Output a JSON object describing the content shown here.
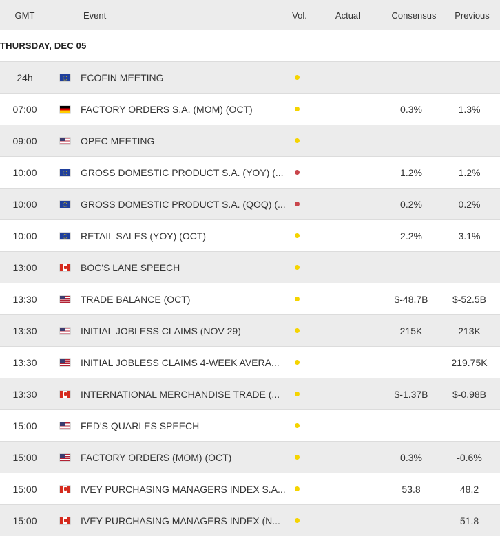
{
  "header": {
    "gmt": "GMT",
    "event": "Event",
    "vol": "Vol.",
    "actual": "Actual",
    "consensus": "Consensus",
    "previous": "Previous"
  },
  "day_label": "THURSDAY, DEC 05",
  "colors": {
    "volatility_medium": "#f5d400",
    "volatility_high": "#c9454b",
    "row_alt": "#ececec"
  },
  "rows": [
    {
      "time": "24h",
      "flag": "eu-flag",
      "event": "ECOFIN MEETING",
      "vol": "medium",
      "actual": "",
      "consensus": "",
      "previous": ""
    },
    {
      "time": "07:00",
      "flag": "de-flag",
      "event": "FACTORY ORDERS S.A. (MOM) (OCT)",
      "vol": "medium",
      "actual": "",
      "consensus": "0.3%",
      "previous": "1.3%"
    },
    {
      "time": "09:00",
      "flag": "us-flag",
      "event": "OPEC MEETING",
      "vol": "medium",
      "actual": "",
      "consensus": "",
      "previous": ""
    },
    {
      "time": "10:00",
      "flag": "eu-flag",
      "event": "GROSS DOMESTIC PRODUCT S.A. (YOY) (...",
      "vol": "high",
      "actual": "",
      "consensus": "1.2%",
      "previous": "1.2%"
    },
    {
      "time": "10:00",
      "flag": "eu-flag",
      "event": "GROSS DOMESTIC PRODUCT S.A. (QOQ) (...",
      "vol": "high",
      "actual": "",
      "consensus": "0.2%",
      "previous": "0.2%"
    },
    {
      "time": "10:00",
      "flag": "eu-flag",
      "event": "RETAIL SALES (YOY) (OCT)",
      "vol": "medium",
      "actual": "",
      "consensus": "2.2%",
      "previous": "3.1%"
    },
    {
      "time": "13:00",
      "flag": "ca-flag",
      "event": "BOC'S LANE SPEECH",
      "vol": "medium",
      "actual": "",
      "consensus": "",
      "previous": ""
    },
    {
      "time": "13:30",
      "flag": "us-flag",
      "event": "TRADE BALANCE (OCT)",
      "vol": "medium",
      "actual": "",
      "consensus": "$-48.7B",
      "previous": "$-52.5B"
    },
    {
      "time": "13:30",
      "flag": "us-flag",
      "event": "INITIAL JOBLESS CLAIMS (NOV 29)",
      "vol": "medium",
      "actual": "",
      "consensus": "215K",
      "previous": "213K"
    },
    {
      "time": "13:30",
      "flag": "us-flag",
      "event": "INITIAL JOBLESS CLAIMS 4-WEEK AVERA...",
      "vol": "medium",
      "actual": "",
      "consensus": "",
      "previous": "219.75K"
    },
    {
      "time": "13:30",
      "flag": "ca-flag",
      "event": "INTERNATIONAL MERCHANDISE TRADE (...",
      "vol": "medium",
      "actual": "",
      "consensus": "$-1.37B",
      "previous": "$-0.98B"
    },
    {
      "time": "15:00",
      "flag": "us-flag",
      "event": "FED'S QUARLES SPEECH",
      "vol": "medium",
      "actual": "",
      "consensus": "",
      "previous": ""
    },
    {
      "time": "15:00",
      "flag": "us-flag",
      "event": "FACTORY ORDERS (MOM) (OCT)",
      "vol": "medium",
      "actual": "",
      "consensus": "0.3%",
      "previous": "-0.6%"
    },
    {
      "time": "15:00",
      "flag": "ca-flag",
      "event": "IVEY PURCHASING MANAGERS INDEX S.A...",
      "vol": "medium",
      "actual": "",
      "consensus": "53.8",
      "previous": "48.2"
    },
    {
      "time": "15:00",
      "flag": "ca-flag",
      "event": "IVEY PURCHASING MANAGERS INDEX (N...",
      "vol": "medium",
      "actual": "",
      "consensus": "",
      "previous": "51.8"
    }
  ]
}
